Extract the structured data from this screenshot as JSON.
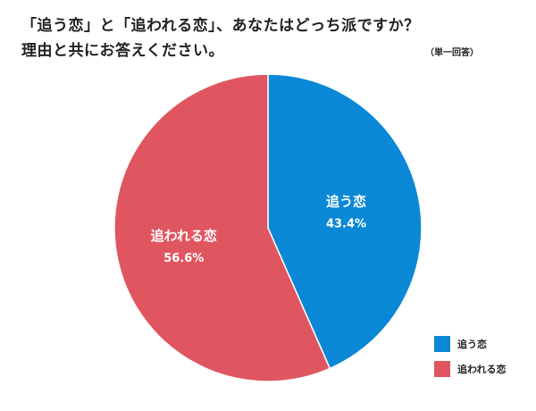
{
  "chart_data": {
    "type": "pie",
    "title_lines": [
      "「追う恋」と「追われる恋」、あなたはどっち派ですか？",
      "理由と共にお答えください。"
    ],
    "note": "（単一回答）",
    "slices": [
      {
        "label": "追う恋",
        "value": 43.4,
        "value_text": "43.4%",
        "color": "#0a88d6"
      },
      {
        "label": "追われる恋",
        "value": 56.6,
        "value_text": "56.6%",
        "color": "#e05660"
      }
    ],
    "start": "12 o'clock",
    "direction": "clockwise",
    "legend_position": "bottom-right"
  }
}
